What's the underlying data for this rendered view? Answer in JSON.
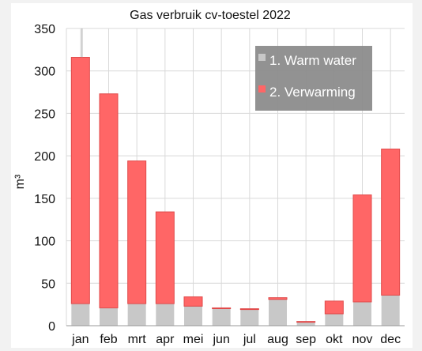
{
  "chart_data": {
    "type": "bar",
    "stacked": true,
    "title": "Gas verbruik cv-toestel 2022",
    "xlabel": "",
    "ylabel": "m³",
    "ylim": [
      0,
      350
    ],
    "yticks": [
      0,
      50,
      100,
      150,
      200,
      250,
      300,
      350
    ],
    "grid": true,
    "legend_position": "top-right",
    "categories": [
      "jan",
      "feb",
      "mrt",
      "apr",
      "mei",
      "jun",
      "jul",
      "aug",
      "sep",
      "okt",
      "nov",
      "dec"
    ],
    "series": [
      {
        "name": "1. Warm water",
        "color": "#c8c8c8",
        "values": [
          26,
          21,
          26,
          26,
          23,
          20,
          19,
          31,
          4,
          14,
          28,
          36
        ]
      },
      {
        "name": "2. Verwarming",
        "color": "#ff6666",
        "values": [
          290,
          252,
          168,
          108,
          11,
          1,
          1,
          2,
          1,
          15,
          126,
          172
        ]
      }
    ]
  }
}
